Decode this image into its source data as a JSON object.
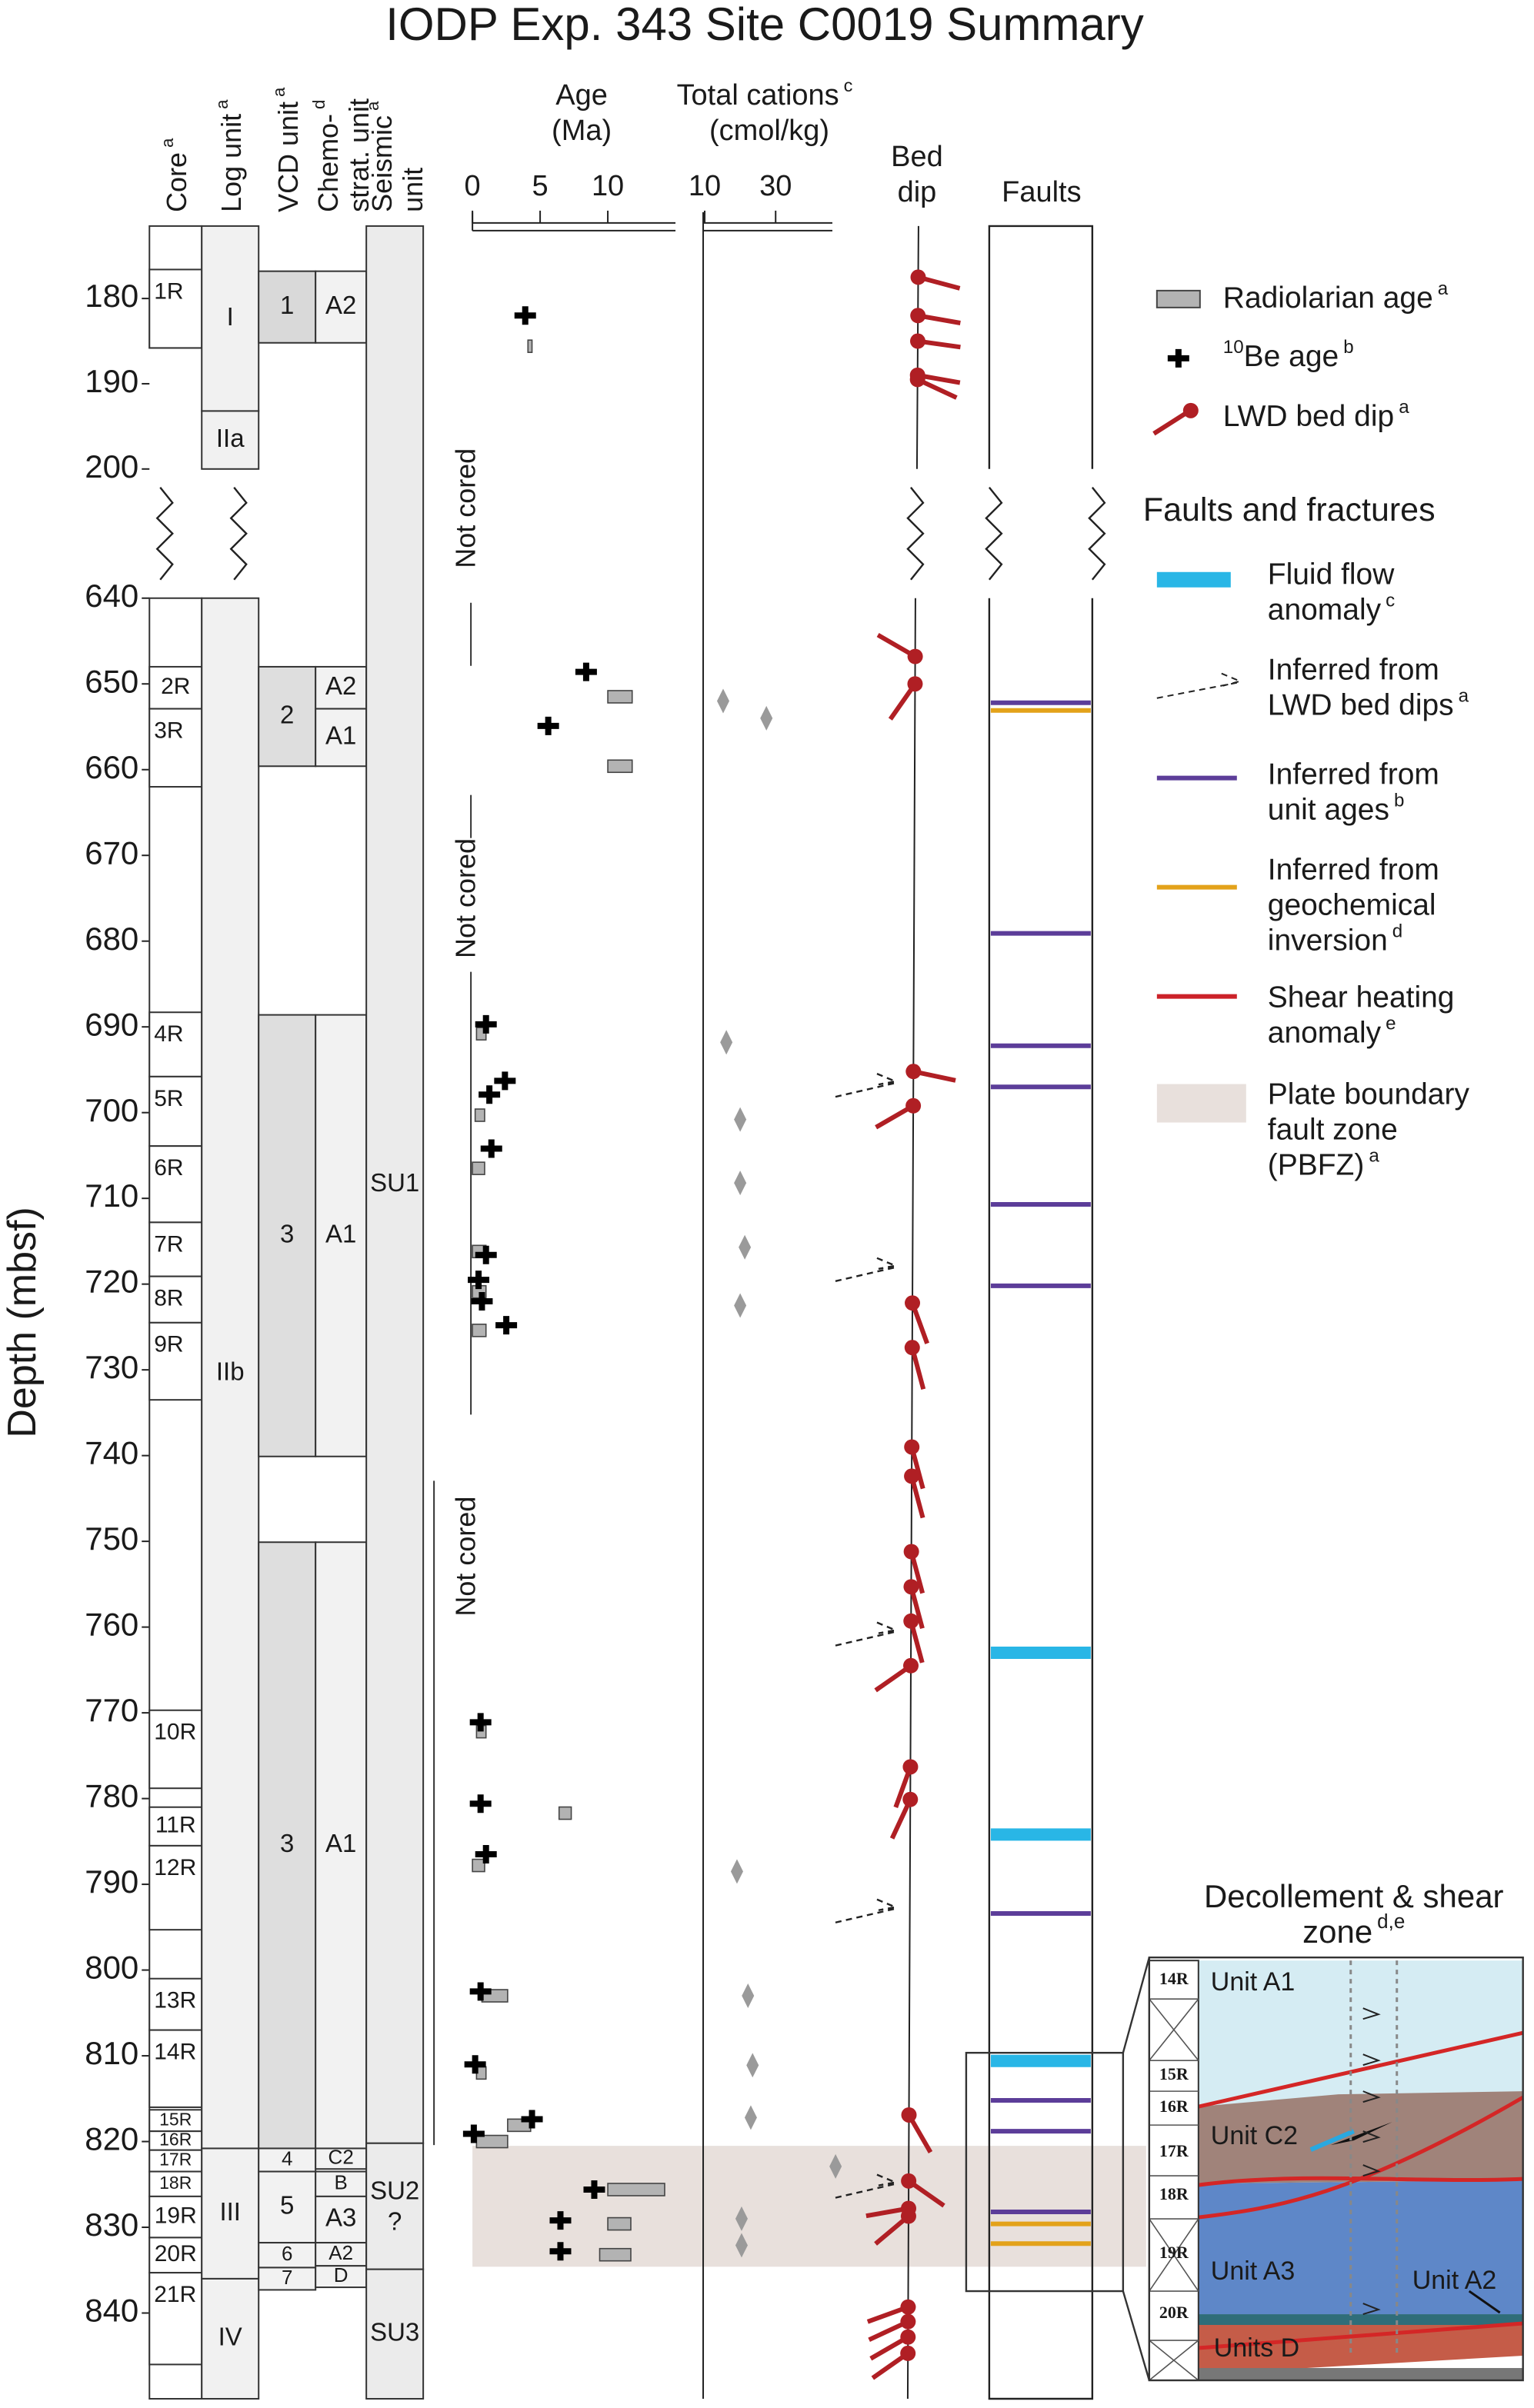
{
  "chart_data": {
    "type": "well-log-summary",
    "title": "IODP Exp. 343 Site C0019 Summary",
    "depth_axis": {
      "label": "Depth (mbsf)",
      "segments": [
        {
          "ylim": [
            171.5,
            200
          ],
          "yticks": [
            180,
            190,
            200
          ]
        },
        {
          "ylim": [
            640,
            850
          ],
          "yticks": [
            640,
            650,
            660,
            670,
            680,
            690,
            700,
            710,
            720,
            730,
            740,
            750,
            760,
            770,
            780,
            790,
            800,
            810,
            820,
            830,
            840
          ]
        }
      ]
    },
    "columns": [
      {
        "header": {
          "lines": [
            "Core"
          ],
          "sup": "a"
        },
        "color": "#ffffff",
        "intervals": [
          {
            "label": "1R",
            "top": 176.6,
            "bottom": 185.8
          },
          {
            "label": "2R",
            "top": 648.0,
            "bottom": 652.9
          },
          {
            "label": "3R",
            "top": 652.9,
            "bottom": 662.0
          },
          {
            "label": "4R",
            "top": 688.3,
            "bottom": 695.8
          },
          {
            "label": "5R",
            "top": 695.8,
            "bottom": 703.9
          },
          {
            "label": "6R",
            "top": 703.9,
            "bottom": 712.8
          },
          {
            "label": "7R",
            "top": 712.8,
            "bottom": 719.1
          },
          {
            "label": "8R",
            "top": 719.1,
            "bottom": 724.5
          },
          {
            "label": "9R",
            "top": 724.5,
            "bottom": 733.5
          },
          {
            "label": "10R",
            "top": 769.7,
            "bottom": 778.8
          },
          {
            "label": "11R",
            "top": 781.0,
            "bottom": 785.5
          },
          {
            "label": "12R",
            "top": 785.5,
            "bottom": 795.3
          },
          {
            "label": "13R",
            "top": 801.0,
            "bottom": 807.0
          },
          {
            "label": "14R",
            "top": 807.0,
            "bottom": 816.0
          },
          {
            "label": "15R",
            "top": 816.3,
            "bottom": 818.8
          },
          {
            "label": "16R",
            "top": 818.8,
            "bottom": 821.0
          },
          {
            "label": "17R",
            "top": 821.0,
            "bottom": 823.5
          },
          {
            "label": "18R",
            "top": 823.5,
            "bottom": 826.4
          },
          {
            "label": "19R",
            "top": 826.4,
            "bottom": 831.2
          },
          {
            "label": "20R",
            "top": 831.2,
            "bottom": 835.3
          },
          {
            "label": "21R",
            "top": 835.3,
            "bottom": 846.0
          }
        ]
      },
      {
        "header": {
          "lines": [
            "Log unit"
          ],
          "sup": "a"
        },
        "color": "#f1f1f1",
        "intervals": [
          {
            "label": "I",
            "top": 171.5,
            "bottom": 193.2
          },
          {
            "label": "IIa",
            "top": 193.2,
            "bottom": 200
          },
          {
            "label": "IIb",
            "top": 640,
            "bottom": 820.8
          },
          {
            "label": "III",
            "top": 820.8,
            "bottom": 836.0
          },
          {
            "label": "IV",
            "top": 836.0,
            "bottom": 850
          }
        ]
      },
      {
        "header": {
          "lines": [
            "VCD unit"
          ],
          "sup": "a"
        },
        "color": "#f2f2f2",
        "intervals": [
          {
            "label": "1",
            "top": 176.8,
            "bottom": 185.2,
            "color": "#d9d9d9"
          },
          {
            "label": "2",
            "top": 648.0,
            "bottom": 659.6,
            "color": "#dedede"
          },
          {
            "label": "3",
            "top": 688.6,
            "bottom": 740.1,
            "color": "#dedede"
          },
          {
            "label": "3",
            "top": 750.1,
            "bottom": 820.8,
            "color": "#dedede"
          },
          {
            "label": "4",
            "top": 820.8,
            "bottom": 823.5
          },
          {
            "label": "5",
            "top": 823.5,
            "bottom": 831.8
          },
          {
            "label": "6",
            "top": 831.8,
            "bottom": 834.7
          },
          {
            "label": "7",
            "top": 834.7,
            "bottom": 837.3
          }
        ]
      },
      {
        "header": {
          "lines": [
            "Chemo-",
            "strat. unit"
          ],
          "sup": "d"
        },
        "color": "#f2f2f2",
        "intervals": [
          {
            "label": "A2",
            "top": 176.8,
            "bottom": 185.2
          },
          {
            "label": "A2",
            "top": 648.0,
            "bottom": 652.9
          },
          {
            "label": "A1",
            "top": 652.9,
            "bottom": 659.6
          },
          {
            "label": "A1",
            "top": 688.6,
            "bottom": 740.1
          },
          {
            "label": "A1",
            "top": 750.1,
            "bottom": 820.8
          },
          {
            "label": "C2",
            "top": 820.8,
            "bottom": 823.2
          },
          {
            "label": "B",
            "top": 823.5,
            "bottom": 826.4
          },
          {
            "label": "A3",
            "top": 826.4,
            "bottom": 831.8
          },
          {
            "label": "A2",
            "top": 831.8,
            "bottom": 834.5
          },
          {
            "label": "D",
            "top": 834.5,
            "bottom": 837.0
          }
        ]
      },
      {
        "header": {
          "lines": [
            "Seismic",
            "unit"
          ],
          "sup": "a"
        },
        "color": "#ebebeb",
        "intervals": [
          {
            "label": "SU1",
            "top": 171.5,
            "bottom": 820.2
          },
          {
            "label": "SU2",
            "note": "?",
            "top": 820.2,
            "bottom": 834.9
          },
          {
            "label": "SU3",
            "top": 834.9,
            "bottom": 850
          }
        ]
      }
    ],
    "not_cored": [
      {
        "label": "Not cored",
        "top": 186.0,
        "bottom": 648.0
      },
      {
        "label": "Not cored",
        "top": 662.0,
        "bottom": 688.0
      },
      {
        "label": "Not cored",
        "top": 733.5,
        "bottom": 770.0
      }
    ],
    "age_panel": {
      "title": [
        "Age",
        "(Ma)"
      ],
      "xlim": [
        0,
        15
      ],
      "xticks": [
        0,
        5,
        10
      ],
      "radiolarian": {
        "color": "#b3b3b3",
        "depth": [
          185.6,
          651.5,
          659.6,
          690.8,
          700.3,
          706.5,
          716.2,
          720.9,
          725.4,
          772.2,
          781.7,
          787.8,
          803.0,
          812.0,
          818.1,
          820.0,
          825.6,
          829.6,
          833.2
        ],
        "age_min": [
          4.1,
          10.0,
          10.0,
          0.3,
          0.2,
          0.0,
          0.0,
          0.0,
          0.0,
          0.3,
          6.4,
          0.0,
          0.7,
          0.3,
          2.6,
          0.3,
          10.0,
          10.0,
          9.4
        ],
        "age_max": [
          4.4,
          11.8,
          11.8,
          1.0,
          0.9,
          0.9,
          1.0,
          1.0,
          1.0,
          1.0,
          7.3,
          0.9,
          2.6,
          1.0,
          4.3,
          2.6,
          14.2,
          11.7,
          11.7
        ]
      },
      "be10": {
        "color": "#000000",
        "depth": [
          182.0,
          648.6,
          654.9,
          689.7,
          696.3,
          697.9,
          704.2,
          716.6,
          719.5,
          722.0,
          724.8,
          771.1,
          780.6,
          786.5,
          802.5,
          811.0,
          819.1,
          817.4,
          825.6,
          829.2,
          832.8
        ],
        "age": [
          3.9,
          8.4,
          5.6,
          1.0,
          2.4,
          1.25,
          1.4,
          1.0,
          0.45,
          0.7,
          2.5,
          0.6,
          0.6,
          1.0,
          0.6,
          0.2,
          0.1,
          4.4,
          9.0,
          6.5,
          6.5
        ]
      }
    },
    "cations_panel": {
      "title": [
        "Total cations",
        "(cmol/kg)"
      ],
      "title_sup": "c",
      "xlim": [
        10,
        46
      ],
      "xticks": [
        10,
        30
      ],
      "color": "#9a9a9a",
      "depth": [
        652.0,
        654.0,
        691.8,
        700.8,
        708.2,
        715.7,
        722.5,
        788.5,
        803.0,
        811.1,
        817.2,
        822.9,
        829.0,
        832.1
      ],
      "values": [
        15.2,
        27.4,
        16.1,
        20.0,
        20.0,
        21.3,
        20.0,
        19.1,
        22.2,
        23.5,
        23.0,
        46.9,
        20.4,
        20.4
      ]
    },
    "bed_dip": {
      "title": [
        "Bed",
        "dip"
      ],
      "color": "#b01f24",
      "depth": [
        177.5,
        182.0,
        185.0,
        189.0,
        189.5,
        646.8,
        650.0,
        695.2,
        699.2,
        722.2,
        727.4,
        739.0,
        742.4,
        751.2,
        755.3,
        759.3,
        764.5,
        776.3,
        780.1,
        816.9,
        824.6,
        827.8,
        828.7,
        839.3,
        841.0,
        842.8,
        844.7
      ],
      "dip": [
        15,
        10,
        8,
        10,
        25,
        -30,
        55,
        12,
        30,
        70,
        75,
        75,
        75,
        75,
        75,
        75,
        35,
        70,
        65,
        60,
        35,
        10,
        40,
        20,
        25,
        30,
        35
      ],
      "side": [
        "right",
        "right",
        "right",
        "right",
        "right",
        "left",
        "left",
        "right",
        "left",
        "right",
        "right",
        "right",
        "right",
        "right",
        "right",
        "right",
        "left",
        "left",
        "left",
        "right",
        "right",
        "left",
        "left",
        "left",
        "left",
        "left",
        "left"
      ],
      "lwd_inferred_faults": [
        696.9,
        718.4,
        760.9,
        793.2,
        825.3
      ]
    },
    "faults": {
      "title": "Faults",
      "pbfz": {
        "top": 820.5,
        "bottom": 834.6,
        "color": "#e8e0dc"
      },
      "fluid_flow": {
        "color": "#29b6e6",
        "depths": [
          763.0,
          784.2,
          810.6
        ]
      },
      "unit_ages": {
        "color": "#5c3d99",
        "depths": [
          652.2,
          679.1,
          692.2,
          697.0,
          710.7,
          720.2,
          793.4,
          815.2,
          818.8,
          828.2
        ]
      },
      "geochemical": {
        "color": "#e3a21a",
        "depths": [
          653.1,
          829.6,
          831.9
        ]
      },
      "shear_heating": {
        "color": "#cc2229"
      }
    },
    "legend": {
      "items": [
        {
          "kind": "radiolarian",
          "text": "Radiolarian age",
          "sup": "a"
        },
        {
          "kind": "be10",
          "pre": "10",
          "text": "Be age",
          "sup": "b"
        },
        {
          "kind": "bed_dip",
          "text": "LWD bed dip",
          "sup": "a"
        }
      ],
      "faults_title": "Faults and fractures",
      "fault_items": [
        {
          "kind": "fluid_flow",
          "lines": [
            "Fluid flow",
            "anomaly"
          ],
          "sup": "c"
        },
        {
          "kind": "lwd_inferred",
          "lines": [
            "Inferred from",
            "LWD bed dips"
          ],
          "sup": "a"
        },
        {
          "kind": "unit_ages",
          "lines": [
            "Inferred from",
            "unit ages"
          ],
          "sup": "b"
        },
        {
          "kind": "geochemical",
          "lines": [
            "Inferred from",
            "geochemical",
            "inversion"
          ],
          "sup": "d"
        },
        {
          "kind": "shear_heating",
          "lines": [
            "Shear heating",
            "anomaly"
          ],
          "sup": "e"
        },
        {
          "kind": "pbfz",
          "lines": [
            "Plate boundary",
            "fault zone",
            "(PBFZ)"
          ],
          "sup": "a"
        }
      ]
    },
    "inset": {
      "title": [
        "Decollement & shear",
        "zone"
      ],
      "title_sup": "d,e",
      "cores": [
        "14R",
        "15R",
        "16R",
        "17R",
        "18R",
        "19R",
        "20R"
      ],
      "units": [
        "Unit A1",
        "Unit C2",
        "Unit A3",
        "Unit A2",
        "Units D"
      ]
    }
  }
}
